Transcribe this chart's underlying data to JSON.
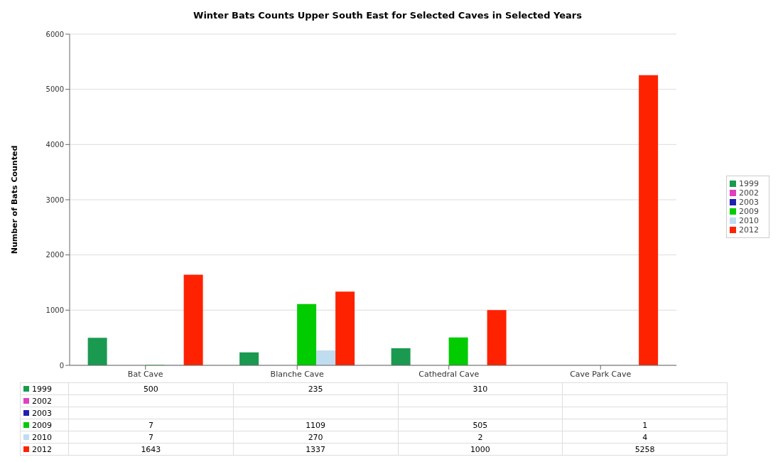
{
  "chart_data": {
    "type": "bar",
    "title": "Winter Bats Counts Upper South East for Selected Caves in Selected Years",
    "ylabel": "Number of Bats Counted",
    "categories": [
      "Bat Cave",
      "Blanche Cave",
      "Cathedral Cave",
      "Cave Park Cave"
    ],
    "series": [
      {
        "name": "1999",
        "color": "#1a9a50",
        "values": [
          500,
          235,
          310,
          null
        ]
      },
      {
        "name": "2002",
        "color": "#e040c0",
        "values": [
          null,
          null,
          null,
          null
        ]
      },
      {
        "name": "2003",
        "color": "#2020b0",
        "values": [
          null,
          null,
          null,
          null
        ]
      },
      {
        "name": "2009",
        "color": "#00cc00",
        "values": [
          7,
          1109,
          505,
          1
        ]
      },
      {
        "name": "2010",
        "color": "#c0dcf0",
        "values": [
          7,
          270,
          2,
          4
        ]
      },
      {
        "name": "2012",
        "color": "#ff2200",
        "values": [
          1643,
          1337,
          1000,
          5258
        ]
      }
    ],
    "ylim": [
      0,
      6000
    ],
    "yticks": [
      0,
      1000,
      2000,
      3000,
      4000,
      5000,
      6000
    ],
    "grid": "y",
    "legend": "right",
    "data_labels": true
  }
}
